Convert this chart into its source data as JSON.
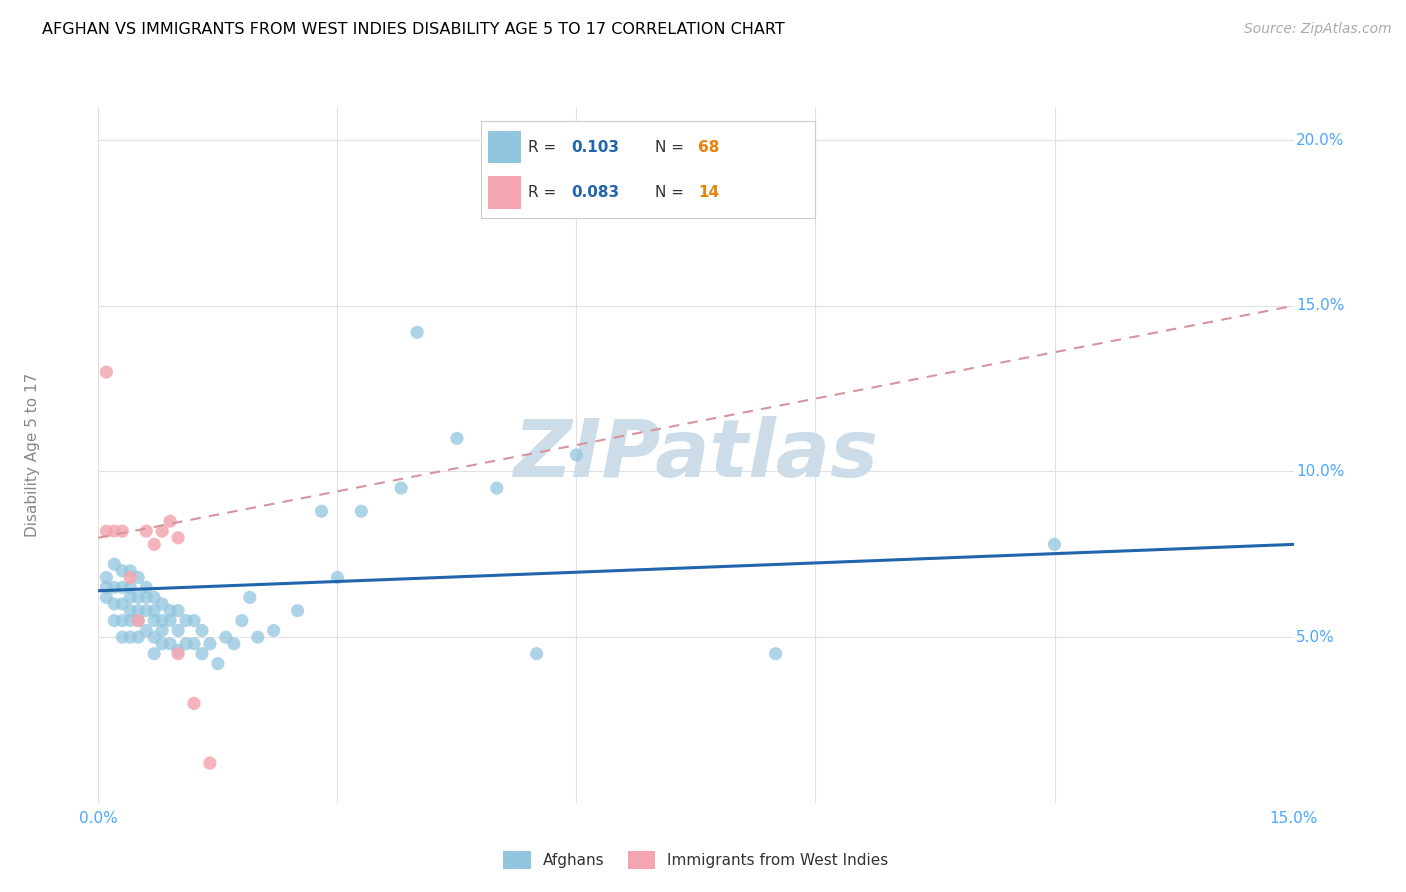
{
  "title": "AFGHAN VS IMMIGRANTS FROM WEST INDIES DISABILITY AGE 5 TO 17 CORRELATION CHART",
  "source": "Source: ZipAtlas.com",
  "ylabel": "Disability Age 5 to 17",
  "xlim": [
    0.0,
    0.15
  ],
  "ylim": [
    0.0,
    0.21
  ],
  "blue_color": "#92c5de",
  "pink_color": "#f4a6b0",
  "trendline_blue_color": "#2166ac",
  "trendline_pink_color": "#d6949c",
  "watermark_color": "#ccdce8",
  "grid_color": "#e0e0e0",
  "tick_color": "#4da6ff",
  "background_color": "#ffffff",
  "afghans_x": [
    0.001,
    0.001,
    0.001,
    0.002,
    0.002,
    0.002,
    0.002,
    0.003,
    0.003,
    0.003,
    0.003,
    0.003,
    0.004,
    0.004,
    0.004,
    0.004,
    0.004,
    0.004,
    0.005,
    0.005,
    0.005,
    0.005,
    0.005,
    0.006,
    0.006,
    0.006,
    0.006,
    0.007,
    0.007,
    0.007,
    0.007,
    0.007,
    0.008,
    0.008,
    0.008,
    0.008,
    0.009,
    0.009,
    0.009,
    0.01,
    0.01,
    0.01,
    0.011,
    0.011,
    0.012,
    0.012,
    0.013,
    0.013,
    0.014,
    0.015,
    0.016,
    0.017,
    0.018,
    0.019,
    0.02,
    0.022,
    0.025,
    0.028,
    0.03,
    0.033,
    0.038,
    0.04,
    0.045,
    0.05,
    0.055,
    0.06,
    0.085,
    0.12
  ],
  "afghans_y": [
    0.068,
    0.065,
    0.062,
    0.072,
    0.065,
    0.06,
    0.055,
    0.07,
    0.065,
    0.06,
    0.055,
    0.05,
    0.07,
    0.065,
    0.062,
    0.058,
    0.055,
    0.05,
    0.068,
    0.062,
    0.058,
    0.055,
    0.05,
    0.065,
    0.062,
    0.058,
    0.052,
    0.062,
    0.058,
    0.055,
    0.05,
    0.045,
    0.06,
    0.055,
    0.052,
    0.048,
    0.058,
    0.055,
    0.048,
    0.058,
    0.052,
    0.046,
    0.055,
    0.048,
    0.055,
    0.048,
    0.052,
    0.045,
    0.048,
    0.042,
    0.05,
    0.048,
    0.055,
    0.062,
    0.05,
    0.052,
    0.058,
    0.088,
    0.068,
    0.088,
    0.095,
    0.142,
    0.11,
    0.095,
    0.045,
    0.105,
    0.045,
    0.078
  ],
  "westindies_x": [
    0.001,
    0.001,
    0.002,
    0.003,
    0.004,
    0.005,
    0.006,
    0.007,
    0.008,
    0.009,
    0.01,
    0.01,
    0.012,
    0.014
  ],
  "westindies_y": [
    0.13,
    0.082,
    0.082,
    0.082,
    0.068,
    0.055,
    0.082,
    0.078,
    0.082,
    0.085,
    0.08,
    0.045,
    0.03,
    0.012
  ]
}
